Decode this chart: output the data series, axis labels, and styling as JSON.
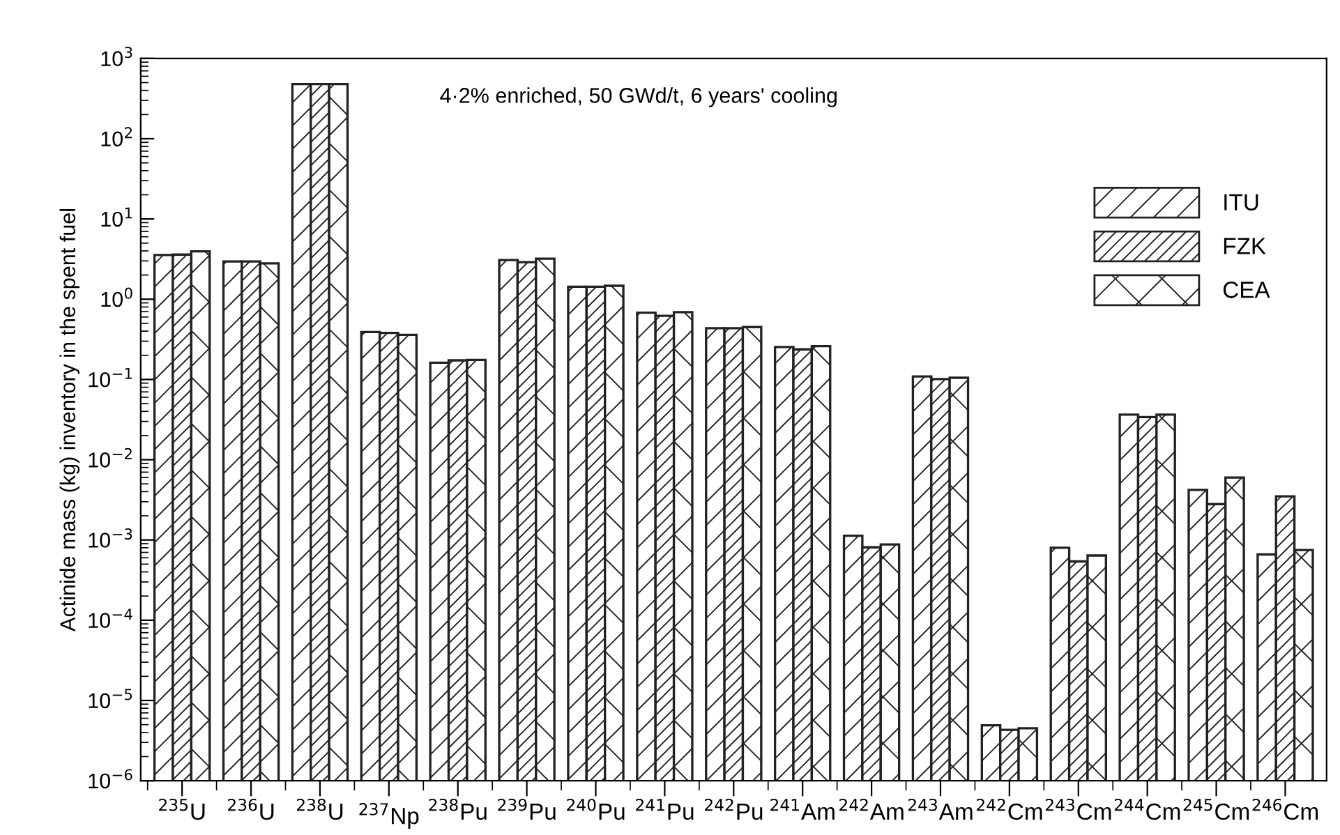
{
  "chart_data": {
    "type": "bar",
    "ylabel": "Actinide mass (kg) inventory in the spent fuel",
    "annotations": [
      "4·2% enriched, 50 GWd/t, 6 years' cooling"
    ],
    "categories": [
      "$^{235}$U",
      "$^{236}$U",
      "$^{238}$U",
      "$^{237}$Np",
      "$^{238}$Pu",
      "$^{239}$Pu",
      "$^{240}$Pu",
      "$^{241}$Pu",
      "$^{242}$Pu",
      "$^{241}$Am",
      "$^{242}$Am",
      "$^{243}$Am",
      "$^{242}$Cm",
      "$^{243}$Cm",
      "$^{244}$Cm",
      "$^{245}$Cm",
      "$^{246}$Cm"
    ],
    "series": [
      {
        "name": "ITU",
        "color": "#222222",
        "values": [
          3.55,
          2.95,
          480,
          0.39,
          0.162,
          3.07,
          1.43,
          0.68,
          0.436,
          0.254,
          0.00113,
          0.109,
          4.9e-06,
          0.0008,
          0.0365,
          0.0042,
          0.00066
        ]
      },
      {
        "name": "FZK",
        "color": "#222222",
        "values": [
          3.6,
          2.95,
          480,
          0.38,
          0.173,
          2.9,
          1.43,
          0.62,
          0.436,
          0.237,
          0.00081,
          0.101,
          4.3e-06,
          0.00054,
          0.034,
          0.0028,
          0.0035
        ]
      },
      {
        "name": "CEA",
        "color": "#222222",
        "values": [
          3.95,
          2.8,
          480,
          0.36,
          0.175,
          3.2,
          1.47,
          0.69,
          0.45,
          0.26,
          0.00088,
          0.105,
          4.5e-06,
          0.00064,
          0.0365,
          0.006,
          0.00075
        ]
      }
    ],
    "log": "y",
    "ylim": [
      1e-06,
      1000
    ],
    "yticks": [
      {
        "value": 1e-06,
        "label": "10$^{−6}$"
      },
      {
        "value": 1e-05,
        "label": "10$^{−5}$"
      },
      {
        "value": 0.0001,
        "label": "10$^{−4}$"
      },
      {
        "value": 0.001,
        "label": "10$^{−3}$"
      },
      {
        "value": 0.01,
        "label": "10$^{−2}$"
      },
      {
        "value": 0.1,
        "label": "10$^{−1}$"
      },
      {
        "value": 1,
        "label": "10$^{0}$"
      },
      {
        "value": 10,
        "label": "10$^{1}$"
      },
      {
        "value": 100,
        "label": "10$^{2}$"
      },
      {
        "value": 1000,
        "label": "10$^{3}$"
      }
    ],
    "grid": false,
    "legend": "top right"
  }
}
